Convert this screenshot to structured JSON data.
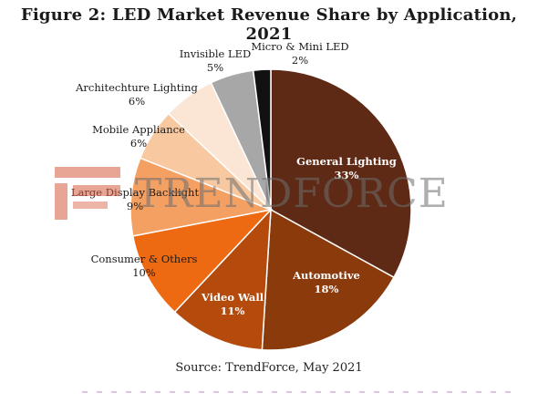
{
  "figure": {
    "title": "Figure 2: LED Market Revenue Share by Application, 2021",
    "source": "Source: TrendForce, May 2021"
  },
  "watermark": {
    "text": "TRENDFORCE"
  },
  "chart_data": {
    "type": "pie",
    "title": "Figure 2: LED Market Revenue Share by Application, 2021",
    "slices": [
      {
        "label": "General Lighting",
        "pct_label": "33%",
        "value": 33,
        "color": "#5e2a16"
      },
      {
        "label": "Automotive",
        "pct_label": "18%",
        "value": 18,
        "color": "#8b3a0c"
      },
      {
        "label": "Video Wall",
        "pct_label": "11%",
        "value": 11,
        "color": "#b44b0d"
      },
      {
        "label": "Consumer & Others",
        "pct_label": "10%",
        "value": 10,
        "color": "#ee6a12"
      },
      {
        "label": "Large Display Backlight",
        "pct_label": "9%",
        "value": 9,
        "color": "#f4a063"
      },
      {
        "label": "Mobile Appliance",
        "pct_label": "6%",
        "value": 6,
        "color": "#f8c9a1"
      },
      {
        "label": "Architechture Lighting",
        "pct_label": "6%",
        "value": 6,
        "color": "#fbe6d6"
      },
      {
        "label": "Invisible LED",
        "pct_label": "5%",
        "value": 5,
        "color": "#a7a7a7"
      },
      {
        "label": "Micro & Mini LED",
        "pct_label": "2%",
        "value": 2,
        "color": "#111111"
      }
    ]
  }
}
